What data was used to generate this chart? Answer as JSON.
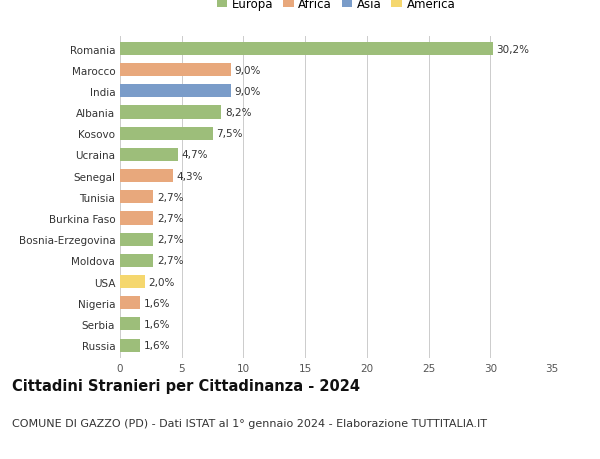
{
  "countries": [
    "Romania",
    "Marocco",
    "India",
    "Albania",
    "Kosovo",
    "Ucraina",
    "Senegal",
    "Tunisia",
    "Burkina Faso",
    "Bosnia-Erzegovina",
    "Moldova",
    "USA",
    "Nigeria",
    "Serbia",
    "Russia"
  ],
  "values": [
    30.2,
    9.0,
    9.0,
    8.2,
    7.5,
    4.7,
    4.3,
    2.7,
    2.7,
    2.7,
    2.7,
    2.0,
    1.6,
    1.6,
    1.6
  ],
  "labels": [
    "30,2%",
    "9,0%",
    "9,0%",
    "8,2%",
    "7,5%",
    "4,7%",
    "4,3%",
    "2,7%",
    "2,7%",
    "2,7%",
    "2,7%",
    "2,0%",
    "1,6%",
    "1,6%",
    "1,6%"
  ],
  "continents": [
    "Europa",
    "Africa",
    "Asia",
    "Europa",
    "Europa",
    "Europa",
    "Africa",
    "Africa",
    "Africa",
    "Europa",
    "Europa",
    "America",
    "Africa",
    "Europa",
    "Europa"
  ],
  "continent_colors": {
    "Europa": "#9dbe7a",
    "Africa": "#e8a87c",
    "Asia": "#7a9cc9",
    "America": "#f5d76e"
  },
  "legend_order": [
    "Europa",
    "Africa",
    "Asia",
    "America"
  ],
  "title": "Cittadini Stranieri per Cittadinanza - 2024",
  "subtitle": "COMUNE DI GAZZO (PD) - Dati ISTAT al 1° gennaio 2024 - Elaborazione TUTTITALIA.IT",
  "xlim": [
    0,
    35
  ],
  "xticks": [
    0,
    5,
    10,
    15,
    20,
    25,
    30,
    35
  ],
  "background_color": "#ffffff",
  "grid_color": "#cccccc",
  "bar_height": 0.62,
  "title_fontsize": 10.5,
  "subtitle_fontsize": 8,
  "tick_fontsize": 7.5,
  "label_fontsize": 7.5,
  "legend_fontsize": 8.5
}
